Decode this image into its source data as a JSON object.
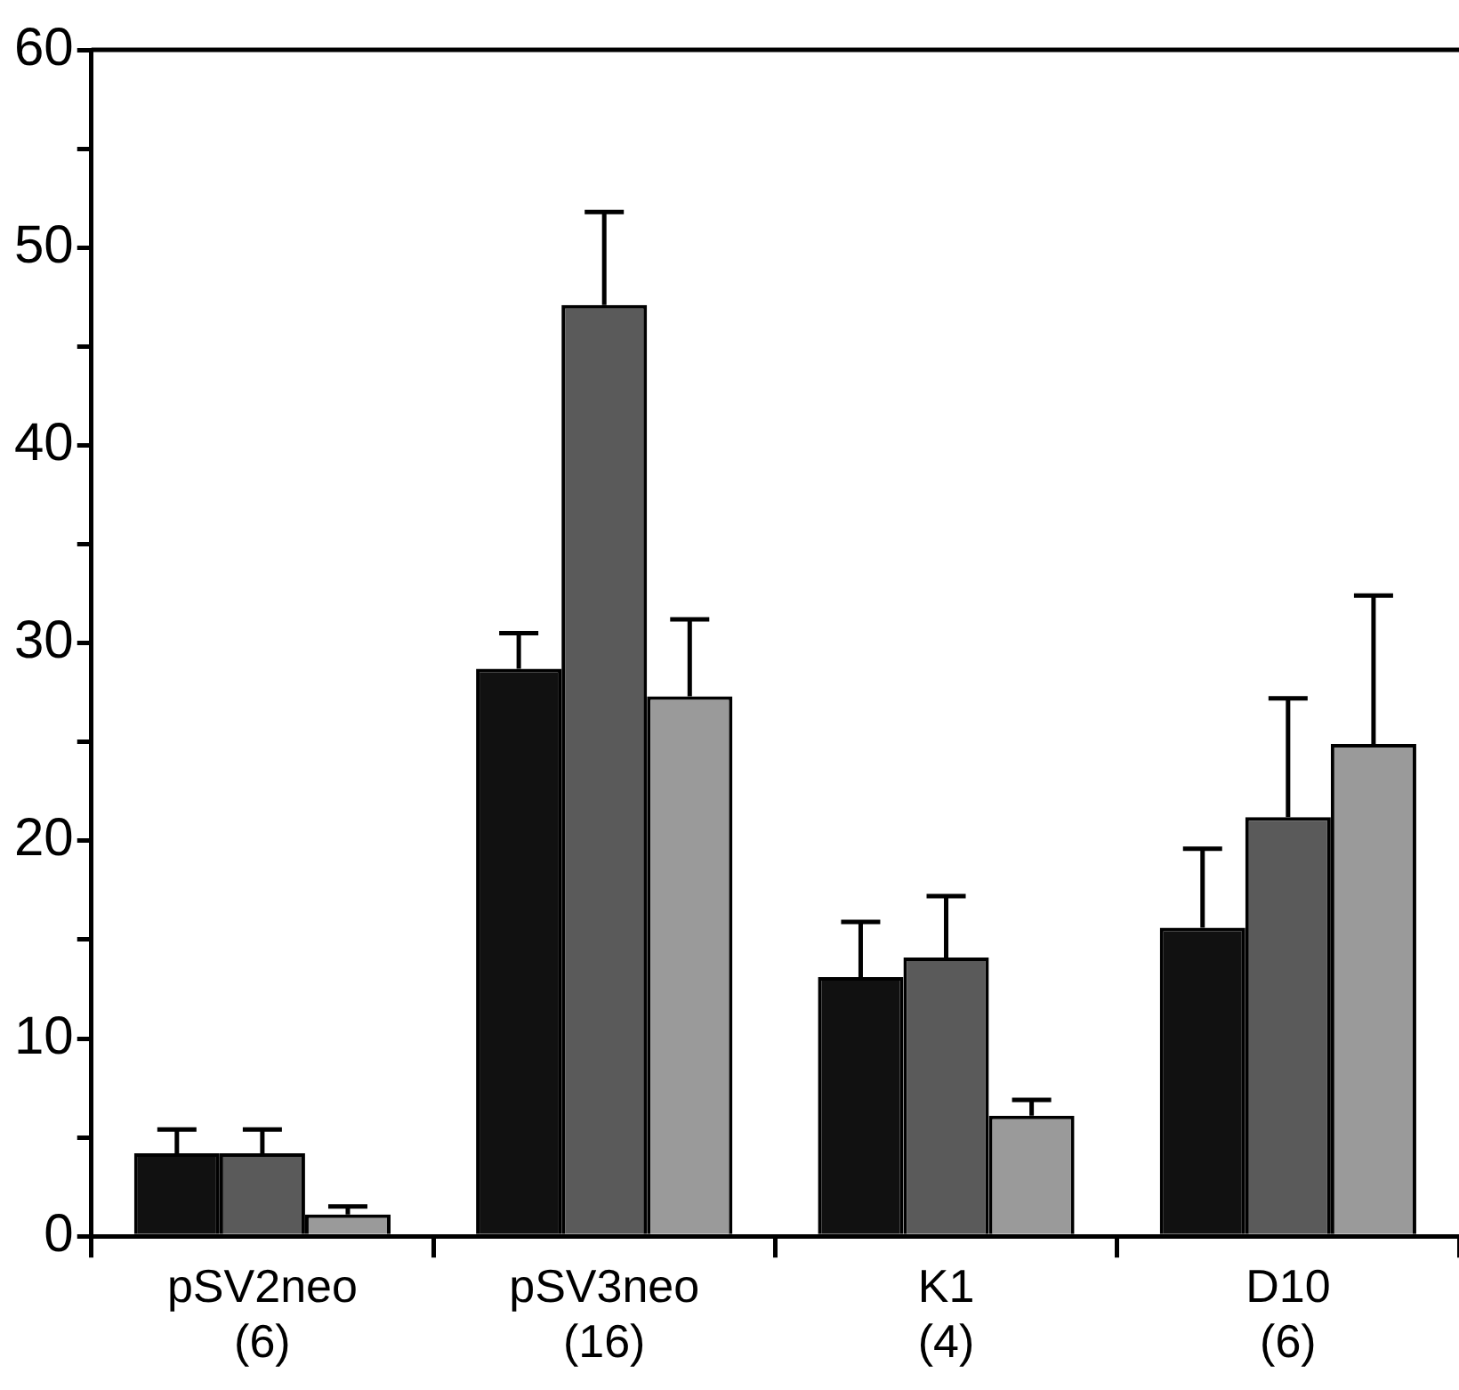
{
  "chart_data": {
    "type": "bar",
    "categories": [
      "pSV2neo\n(6)",
      "pSV3neo\n(16)",
      "K1\n(4)",
      "D10\n(6)"
    ],
    "series": [
      {
        "color": "#111111",
        "values": [
          4.2,
          28.7,
          13.1,
          15.6
        ],
        "errors": [
          [
            4.2,
            5.4
          ],
          [
            28.7,
            30.5
          ],
          [
            13.1,
            15.9
          ],
          [
            15.6,
            19.6
          ]
        ]
      },
      {
        "color": "#5a5a5a",
        "values": [
          4.2,
          47.1,
          14.1,
          21.2
        ],
        "errors": [
          [
            4.2,
            5.4
          ],
          [
            47.1,
            51.8
          ],
          [
            14.1,
            17.2
          ],
          [
            21.2,
            27.2
          ]
        ]
      },
      {
        "color": "#9a9a9a",
        "values": [
          1.1,
          27.3,
          6.1,
          24.9
        ],
        "errors": [
          [
            1.1,
            1.5
          ],
          [
            27.3,
            31.2
          ],
          [
            6.1,
            6.9
          ],
          [
            24.9,
            32.4
          ]
        ]
      }
    ],
    "ylim": [
      0,
      60
    ],
    "yticks": [
      0,
      {
        "value": 5,
        "label": null
      },
      10,
      {
        "value": 15,
        "label": null
      },
      20,
      {
        "value": 25,
        "label": null
      },
      30,
      {
        "value": 35,
        "label": null
      },
      40,
      {
        "value": 45,
        "label": null
      },
      50,
      {
        "value": 55,
        "label": null
      },
      60
    ],
    "grid": false,
    "legend": false
  }
}
